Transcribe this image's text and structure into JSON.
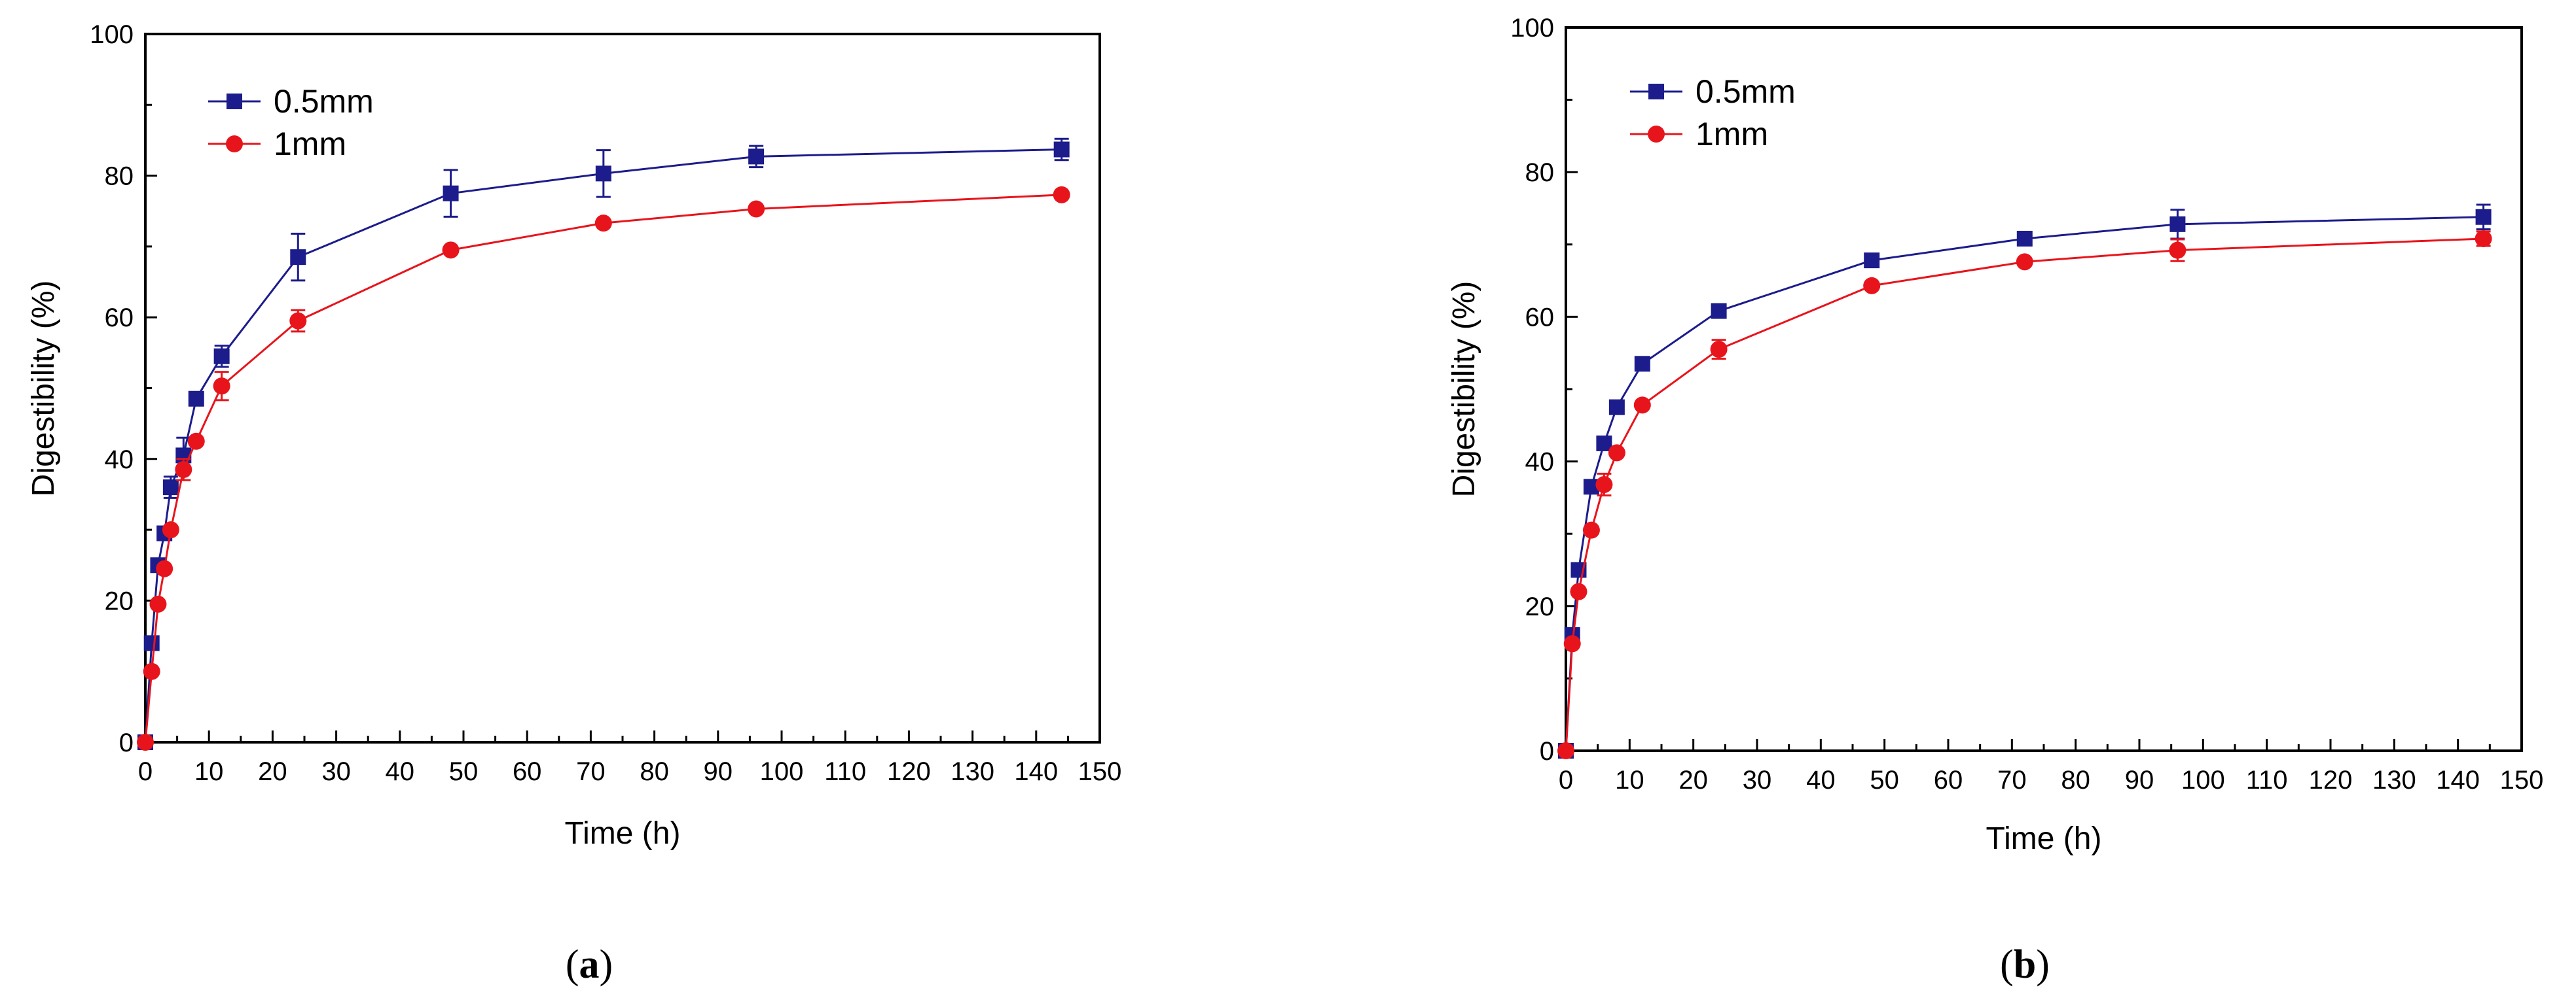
{
  "chart_data": [
    {
      "panel": "a",
      "caption_open": "(",
      "caption_letter": "a",
      "caption_close": ")",
      "type": "line",
      "title": "",
      "xlabel": "Time (h)",
      "ylabel": "Digestibility (%)",
      "xlim": [
        0,
        150
      ],
      "ylim": [
        0,
        100
      ],
      "xticks": [
        0,
        10,
        20,
        30,
        40,
        50,
        60,
        70,
        80,
        90,
        100,
        110,
        120,
        130,
        140,
        150
      ],
      "yticks": [
        0,
        20,
        40,
        60,
        80,
        100
      ],
      "grid": false,
      "legend_position": "top-left",
      "series": [
        {
          "name": "0.5mm",
          "color": "#1c1c8c",
          "marker": "square",
          "x": [
            0,
            1,
            2,
            3,
            4,
            6,
            8,
            12,
            24,
            48,
            72,
            96,
            144
          ],
          "y": [
            0,
            14,
            25,
            29.5,
            36,
            40.5,
            48.5,
            54.5,
            68.5,
            77.5,
            80.3,
            82.7,
            83.7
          ],
          "err": [
            0,
            0,
            0,
            0,
            1.5,
            2.5,
            0,
            1.5,
            3.3,
            3.3,
            3.3,
            1.5,
            1.5
          ]
        },
        {
          "name": "1mm",
          "color": "#e8141c",
          "marker": "circle",
          "x": [
            0,
            1,
            2,
            3,
            4,
            6,
            8,
            12,
            24,
            48,
            72,
            96,
            144
          ],
          "y": [
            0,
            10,
            19.5,
            24.5,
            30,
            38.5,
            42.5,
            50.3,
            59.5,
            69.5,
            73.3,
            75.3,
            77.3
          ],
          "err": [
            0,
            0,
            0,
            0,
            0,
            1.5,
            0,
            2,
            1.5,
            0,
            0,
            0,
            0
          ]
        }
      ]
    },
    {
      "panel": "b",
      "caption_open": "(",
      "caption_letter": "b",
      "caption_close": ")",
      "type": "line",
      "title": "",
      "xlabel": "Time (h)",
      "ylabel": "Digestibility (%)",
      "xlim": [
        0,
        150
      ],
      "ylim": [
        0,
        100
      ],
      "xticks": [
        0,
        10,
        20,
        30,
        40,
        50,
        60,
        70,
        80,
        90,
        100,
        110,
        120,
        130,
        140,
        150
      ],
      "yticks": [
        0,
        20,
        40,
        60,
        80,
        100
      ],
      "grid": false,
      "legend_position": "top-left",
      "series": [
        {
          "name": "0.5mm",
          "color": "#1c1c8c",
          "marker": "square",
          "x": [
            0,
            1,
            2,
            4,
            6,
            8,
            12,
            24,
            48,
            72,
            96,
            144
          ],
          "y": [
            0,
            16,
            25,
            36.5,
            42.5,
            47.5,
            53.5,
            60.8,
            67.8,
            70.8,
            72.8,
            73.8
          ],
          "err": [
            0,
            0,
            0,
            0,
            0,
            0,
            0,
            0,
            0,
            0,
            2,
            1.7
          ]
        },
        {
          "name": "1mm",
          "color": "#e8141c",
          "marker": "circle",
          "x": [
            0,
            1,
            2,
            4,
            6,
            8,
            12,
            24,
            48,
            72,
            96,
            144
          ],
          "y": [
            0,
            14.8,
            22,
            30.5,
            36.8,
            41.2,
            47.8,
            55.5,
            64.3,
            67.6,
            69.2,
            70.8
          ],
          "err": [
            0,
            0,
            0,
            0,
            1.5,
            0,
            0,
            1.3,
            0,
            0,
            1.5,
            1
          ]
        }
      ]
    }
  ]
}
